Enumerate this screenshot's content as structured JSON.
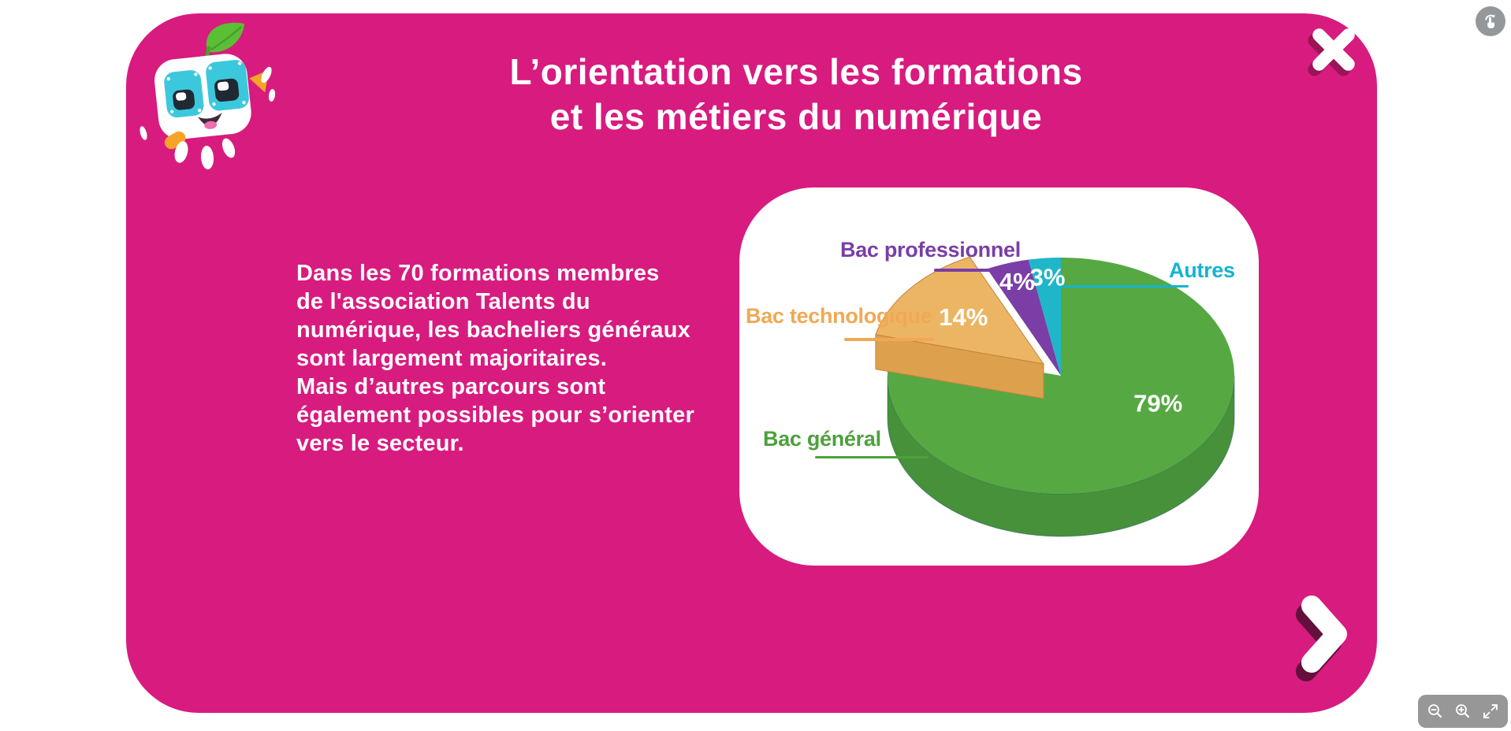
{
  "header": {
    "title_line1": "L’orientation vers les formations",
    "title_line2": "et les métiers du numérique"
  },
  "intro": {
    "text": "Dans les 70 formations membres\nde l'association Talents du\nnumérique, les bacheliers généraux\nsont largement majoritaires.\nMais d’autres parcours sont\négalement possibles pour s’orienter\nvers le secteur."
  },
  "card": {
    "bg": "#d81b7f"
  },
  "mascot": {
    "description": "robot-mascot-with-leaf"
  },
  "chart_data": {
    "type": "pie",
    "title": "",
    "series": [
      {
        "label": "Bac général",
        "value": 79,
        "color": "#56a843",
        "side_color": "#47913a",
        "label_color": "#4da13c"
      },
      {
        "label": "Bac technologique",
        "value": 14,
        "color": "#ecb563",
        "side_color": "#dda04d",
        "label_color": "#f0a953"
      },
      {
        "label": "Bac professionnel",
        "value": 4,
        "color": "#7a3ea6",
        "side_color": "#68348f",
        "label_color": "#7a3ea6"
      },
      {
        "label": "Autres",
        "value": 3,
        "color": "#1fb6c9",
        "side_color": "#17a0b2",
        "label_color": "#14b4d1"
      }
    ],
    "start_angle": "clockwise-from-top",
    "exploded_label": "Bac technologique",
    "value_suffix": "%",
    "legend_position": "around",
    "style": "3d"
  },
  "controls": {
    "close": {
      "icon": "close-icon"
    },
    "next": {
      "icon": "chevron-right-icon"
    },
    "rotate_hint": {
      "icon": "tap-gesture-icon"
    },
    "zoom_out": {
      "icon": "zoom-out-icon"
    },
    "zoom_in": {
      "icon": "zoom-in-icon"
    },
    "fullscreen": {
      "icon": "fullscreen-icon"
    }
  }
}
